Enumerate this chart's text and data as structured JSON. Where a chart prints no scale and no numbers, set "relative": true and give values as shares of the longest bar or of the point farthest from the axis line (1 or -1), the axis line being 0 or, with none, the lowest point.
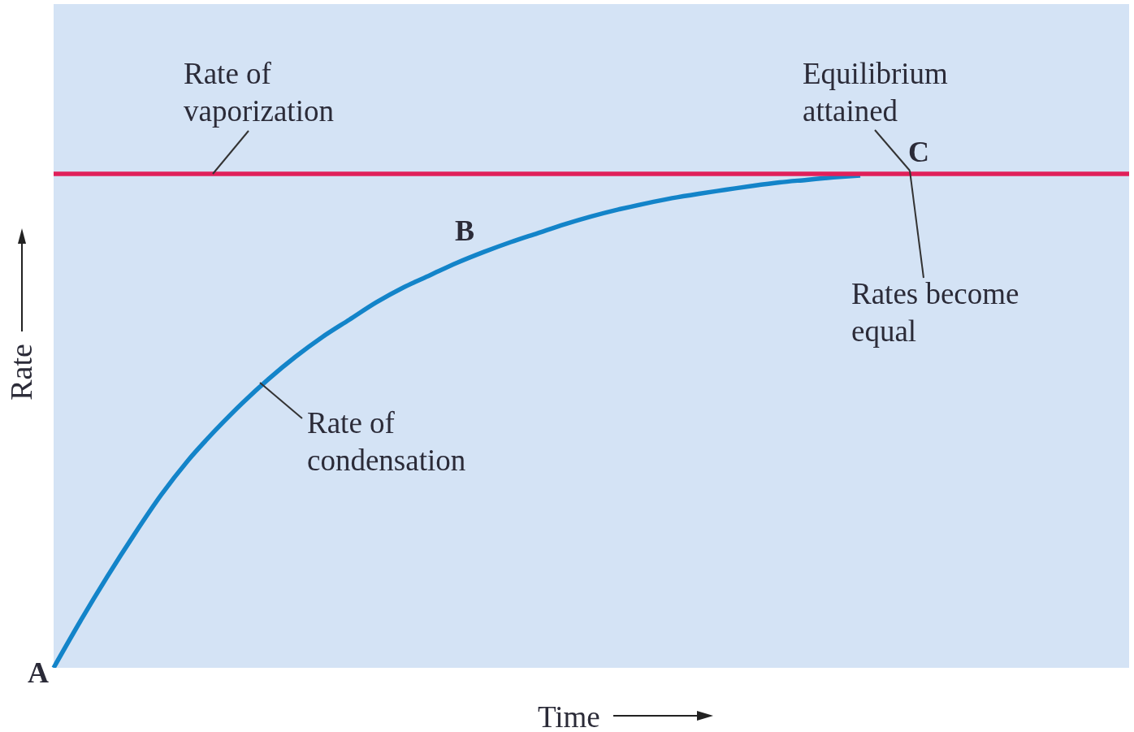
{
  "chart_data": {
    "type": "line",
    "relative": true,
    "xlabel": "Time",
    "ylabel": "Rate",
    "categories": [
      null,
      null,
      null,
      null,
      null,
      null,
      null,
      null,
      null,
      null,
      null,
      null,
      null,
      null,
      null,
      null,
      null,
      null,
      null,
      null,
      null,
      null,
      null,
      null,
      null,
      null,
      null,
      null,
      null,
      null,
      null,
      null,
      null,
      null,
      null,
      null,
      null,
      null,
      null,
      null,
      null
    ],
    "series": [
      {
        "name": "Rate of condensation",
        "color": "#1384c9",
        "values": [
          0,
          0.095,
          0.185,
          0.27,
          0.35,
          0.42,
          0.48,
          0.535,
          0.585,
          0.63,
          0.67,
          0.705,
          0.74,
          0.77,
          0.795,
          0.82,
          0.842,
          0.862,
          0.88,
          0.898,
          0.914,
          0.928,
          0.94,
          0.951,
          0.96,
          0.968,
          0.976,
          0.983,
          0.988,
          0.993,
          0.997,
          null,
          null,
          null,
          null,
          null,
          null,
          null,
          null,
          null,
          null
        ]
      },
      {
        "name": "Rate of vaporization",
        "color": "#e0205a",
        "values": [
          1,
          1,
          1,
          1,
          1,
          1,
          1,
          1,
          1,
          1,
          1,
          1,
          1,
          1,
          1,
          1,
          1,
          1,
          1,
          1,
          1,
          1,
          1,
          1,
          1,
          1,
          1,
          1,
          1,
          1,
          1,
          1,
          1,
          1,
          1,
          1,
          1,
          1,
          1,
          1,
          1
        ]
      }
    ],
    "annotations": [
      "A",
      "B",
      "C",
      "Equilibrium attained",
      "Rates become equal"
    ]
  }
}
